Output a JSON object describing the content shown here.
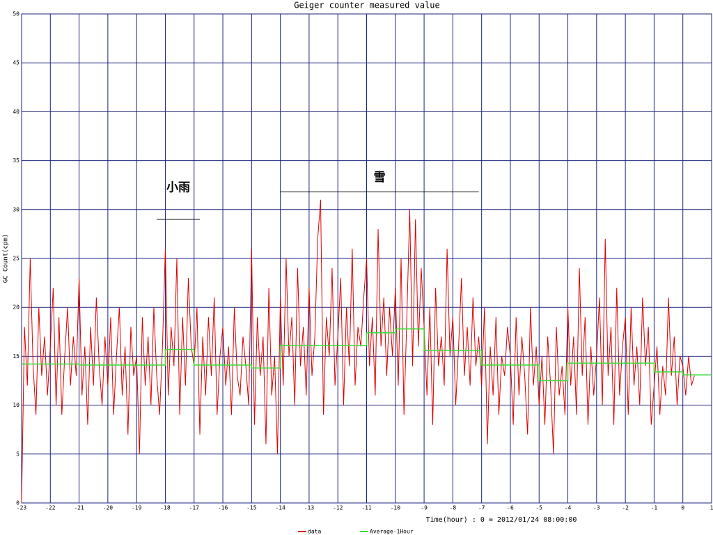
{
  "chart_data": {
    "type": "line",
    "title": "Geiger counter measured value",
    "x_label": "Time(hour) : 0 = 2012/01/24 08:00:00",
    "y_label": "GC Count(cpm)",
    "xlim": [
      -23,
      1
    ],
    "ylim": [
      0,
      50
    ],
    "xticks": [
      -23,
      -22,
      -21,
      -20,
      -19,
      -18,
      -17,
      -16,
      -15,
      -14,
      -13,
      -12,
      -11,
      -10,
      -9,
      -8,
      -7,
      -6,
      -5,
      -4,
      -3,
      -2,
      -1,
      0,
      1
    ],
    "yticks": [
      0,
      5,
      10,
      15,
      20,
      25,
      30,
      35,
      40,
      45,
      50
    ],
    "grid": true,
    "grid_color": "#1a237e",
    "legend": "bottom",
    "series": [
      {
        "name": "data",
        "color": "#e00000",
        "x": [
          -23,
          -22.9,
          -22.8,
          -22.7,
          -22.6,
          -22.5,
          -22.4,
          -22.3,
          -22.2,
          -22.1,
          -22,
          -21.9,
          -21.8,
          -21.7,
          -21.6,
          -21.5,
          -21.4,
          -21.3,
          -21.2,
          -21.1,
          -21,
          -20.9,
          -20.8,
          -20.7,
          -20.6,
          -20.5,
          -20.4,
          -20.3,
          -20.2,
          -20.1,
          -20,
          -19.9,
          -19.8,
          -19.7,
          -19.6,
          -19.5,
          -19.4,
          -19.3,
          -19.2,
          -19.1,
          -19,
          -18.9,
          -18.8,
          -18.7,
          -18.6,
          -18.5,
          -18.4,
          -18.3,
          -18.2,
          -18.1,
          -18,
          -17.9,
          -17.8,
          -17.7,
          -17.6,
          -17.5,
          -17.4,
          -17.3,
          -17.2,
          -17.1,
          -17,
          -16.9,
          -16.8,
          -16.7,
          -16.6,
          -16.5,
          -16.4,
          -16.3,
          -16.2,
          -16.1,
          -16,
          -15.9,
          -15.8,
          -15.7,
          -15.6,
          -15.5,
          -15.4,
          -15.3,
          -15.2,
          -15.1,
          -15,
          -14.9,
          -14.8,
          -14.7,
          -14.6,
          -14.5,
          -14.4,
          -14.3,
          -14.2,
          -14.1,
          -14,
          -13.9,
          -13.8,
          -13.7,
          -13.6,
          -13.5,
          -13.4,
          -13.3,
          -13.2,
          -13.1,
          -13,
          -12.9,
          -12.8,
          -12.7,
          -12.6,
          -12.5,
          -12.4,
          -12.3,
          -12.2,
          -12.1,
          -12,
          -11.9,
          -11.8,
          -11.7,
          -11.6,
          -11.5,
          -11.4,
          -11.3,
          -11.2,
          -11.1,
          -11,
          -10.9,
          -10.8,
          -10.7,
          -10.6,
          -10.5,
          -10.4,
          -10.3,
          -10.2,
          -10.1,
          -10,
          -9.9,
          -9.8,
          -9.7,
          -9.6,
          -9.5,
          -9.4,
          -9.3,
          -9.2,
          -9.1,
          -9,
          -8.9,
          -8.8,
          -8.7,
          -8.6,
          -8.5,
          -8.4,
          -8.3,
          -8.2,
          -8.1,
          -8,
          -7.9,
          -7.8,
          -7.7,
          -7.6,
          -7.5,
          -7.4,
          -7.3,
          -7.2,
          -7.1,
          -7,
          -6.9,
          -6.8,
          -6.7,
          -6.6,
          -6.5,
          -6.4,
          -6.3,
          -6.2,
          -6.1,
          -6,
          -5.9,
          -5.8,
          -5.7,
          -5.6,
          -5.5,
          -5.4,
          -5.3,
          -5.2,
          -5.1,
          -5,
          -4.9,
          -4.8,
          -4.7,
          -4.6,
          -4.5,
          -4.4,
          -4.3,
          -4.2,
          -4.1,
          -4,
          -3.9,
          -3.8,
          -3.7,
          -3.6,
          -3.5,
          -3.4,
          -3.3,
          -3.2,
          -3.1,
          -3,
          -2.9,
          -2.8,
          -2.7,
          -2.6,
          -2.5,
          -2.4,
          -2.3,
          -2.2,
          -2.1,
          -2,
          -1.9,
          -1.8,
          -1.7,
          -1.6,
          -1.5,
          -1.4,
          -1.3,
          -1.2,
          -1.1,
          -1,
          -0.9,
          -0.8,
          -0.7,
          -0.6,
          -0.5,
          -0.4,
          -0.3,
          -0.2,
          -0.1,
          0,
          0.1,
          0.2,
          0.3,
          0.4
        ],
        "values": [
          0,
          18,
          12,
          25,
          14,
          9,
          20,
          13,
          17,
          11,
          16,
          22,
          10,
          19,
          9,
          15,
          20,
          12,
          17,
          13,
          23,
          11,
          16,
          8,
          18,
          12,
          21,
          14,
          10,
          17,
          12,
          19,
          9,
          15,
          20,
          11,
          16,
          7,
          18,
          13,
          15,
          5,
          19,
          12,
          17,
          10,
          20,
          13,
          9,
          16,
          26,
          11,
          18,
          14,
          25,
          9,
          19,
          12,
          23,
          16,
          14,
          20,
          7,
          17,
          11,
          19,
          13,
          21,
          9,
          15,
          18,
          12,
          16,
          9,
          20,
          13,
          11,
          17,
          14,
          10,
          26,
          8,
          19,
          13,
          17,
          6,
          22,
          11,
          15,
          5,
          21,
          12,
          25,
          15,
          19,
          10,
          24,
          14,
          18,
          11,
          22,
          13,
          17,
          27,
          31,
          9,
          19,
          15,
          24,
          12,
          17,
          23,
          10,
          20,
          14,
          26,
          12,
          18,
          16,
          21,
          25,
          14,
          19,
          11,
          28,
          16,
          21,
          13,
          20,
          15,
          22,
          12,
          25,
          9,
          19,
          30,
          14,
          29,
          16,
          24,
          18,
          11,
          20,
          8,
          22,
          14,
          17,
          12,
          26,
          15,
          19,
          10,
          16,
          23,
          13,
          18,
          12,
          21,
          14,
          17,
          12,
          20,
          6,
          16,
          11,
          19,
          9,
          15,
          13,
          18,
          15,
          8,
          19,
          11,
          17,
          13,
          7,
          20,
          12,
          16,
          10,
          15,
          8,
          17,
          12,
          5,
          18,
          11,
          14,
          9,
          20,
          12,
          17,
          9,
          24,
          13,
          19,
          8,
          16,
          11,
          15,
          21,
          10,
          27,
          13,
          18,
          8,
          22,
          11,
          16,
          19,
          9,
          20,
          12,
          16,
          10,
          21,
          14,
          18,
          8,
          12,
          16,
          9,
          14,
          11,
          21,
          13,
          17,
          10,
          15,
          14,
          11,
          15,
          12,
          13
        ]
      },
      {
        "name": "Average-1Hour",
        "color": "#33dd33",
        "x": [
          -23,
          -21,
          -21,
          -18,
          -18,
          -17,
          -17,
          -15,
          -15,
          -14,
          -14,
          -11,
          -11,
          -10,
          -10,
          -9,
          -9,
          -7,
          -7,
          -5,
          -5,
          -4,
          -4,
          -1,
          -1,
          0,
          0,
          1
        ],
        "values": [
          14.2,
          14.2,
          14.1,
          14.1,
          15.7,
          15.7,
          14.1,
          14.1,
          13.8,
          13.8,
          16.1,
          16.1,
          17.4,
          17.4,
          17.8,
          17.8,
          15.6,
          15.6,
          14.1,
          14.1,
          12.5,
          12.5,
          14.3,
          14.3,
          13.4,
          13.4,
          13.1,
          13.1
        ]
      }
    ],
    "annotations": [
      {
        "text": "小雨",
        "x_range": [
          -18.3,
          -16.8
        ],
        "y": 29
      },
      {
        "text": "雪",
        "x_range": [
          -14,
          -7.1
        ],
        "y": 31.8
      }
    ]
  }
}
